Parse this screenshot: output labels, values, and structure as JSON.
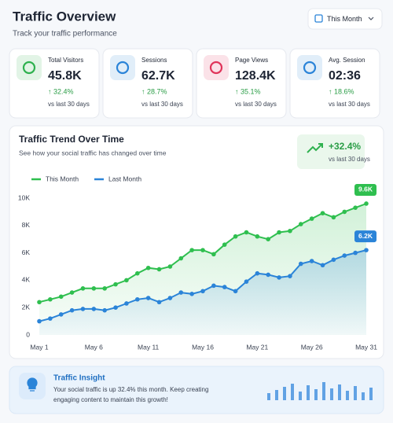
{
  "header": {
    "title": "Traffic Overview",
    "subtitle": "Track your traffic performance",
    "period_button": "This Month"
  },
  "kpis": [
    {
      "label": "Total Visitors",
      "value": "45.8K",
      "change": "↑ 32.4%",
      "note": "vs last 30 days",
      "color": "#2fb14f"
    },
    {
      "label": "Sessions",
      "value": "62.7K",
      "change": "↑ 28.7%",
      "note": "vs last 30 days",
      "color": "#2b84d8"
    },
    {
      "label": "Page Views",
      "value": "128.4K",
      "change": "↑ 35.1%",
      "note": "vs last 30 days",
      "color": "#e0345a"
    },
    {
      "label": "Avg. Session",
      "value": "02:36",
      "change": "↑ 18.6%",
      "note": "vs last 30 days",
      "color": "#2b84d8"
    }
  ],
  "chart_data": {
    "type": "line",
    "title": "Traffic Trend Over Time",
    "subtitle": "See how your social traffic has changed over time",
    "badge": {
      "value": "+32.4%",
      "note": "vs last 30 days"
    },
    "categories": [
      "May 1",
      null,
      null,
      null,
      null,
      "May 6",
      null,
      null,
      null,
      null,
      "May 11",
      null,
      null,
      null,
      null,
      "May 16",
      null,
      null,
      null,
      null,
      "May 21",
      null,
      null,
      null,
      null,
      "May 26",
      null,
      null,
      null,
      null,
      "May 31"
    ],
    "series": [
      {
        "name": "This Month",
        "color": "#2fbf4f",
        "values": [
          2400,
          2600,
          2800,
          3100,
          3400,
          3400,
          3400,
          3700,
          4000,
          4500,
          4900,
          4800,
          5000,
          5600,
          6200,
          6200,
          5900,
          6600,
          7200,
          7500,
          7200,
          7000,
          7500,
          7600,
          8100,
          8500,
          8900,
          8600,
          9000,
          9300,
          9600
        ],
        "value_labels": [
          null,
          null,
          null,
          null,
          null,
          null,
          null,
          null,
          null,
          null,
          null,
          null,
          null,
          null,
          null,
          null,
          null,
          null,
          null,
          null,
          null,
          null,
          null,
          null,
          null,
          null,
          null,
          null,
          null,
          null,
          "9.6K"
        ]
      },
      {
        "name": "Last Month",
        "color": "#2b84d8",
        "values": [
          1000,
          1200,
          1500,
          1800,
          1900,
          1900,
          1800,
          2000,
          2300,
          2600,
          2700,
          2400,
          2700,
          3100,
          3000,
          3200,
          3600,
          3500,
          3200,
          3900,
          4500,
          4400,
          4200,
          4300,
          5200,
          5400,
          5100,
          5500,
          5800,
          6000,
          6200
        ],
        "value_labels": [
          null,
          null,
          null,
          null,
          null,
          null,
          null,
          null,
          null,
          null,
          null,
          null,
          null,
          null,
          null,
          null,
          null,
          null,
          null,
          null,
          null,
          null,
          null,
          null,
          null,
          null,
          null,
          null,
          null,
          null,
          "6.2K"
        ]
      }
    ],
    "ylim": [
      0,
      10000
    ],
    "yticks": [
      0,
      {
        "value": 2000,
        "label": "2K"
      },
      {
        "value": 4000,
        "label": "4K"
      },
      {
        "value": 6000,
        "label": "6K"
      },
      {
        "value": 8000,
        "label": "8K"
      },
      {
        "value": 10000,
        "label": "10K"
      }
    ],
    "grid": false,
    "legend": "top-left"
  },
  "insight": {
    "title": "Traffic Insight",
    "text_line1": "Your social traffic is up 32.4% this month. Keep creating",
    "text_line2": "engaging content to maintain this growth!"
  }
}
